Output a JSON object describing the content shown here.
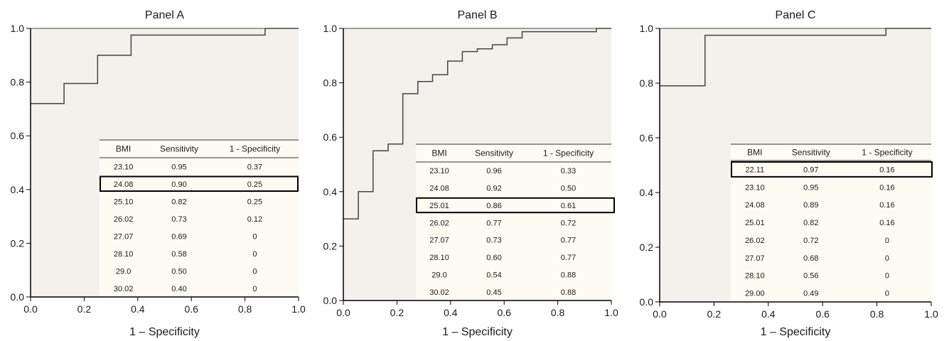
{
  "chart_data": [
    {
      "type": "line",
      "title": "Panel A",
      "xlabel": "1 – Specificity",
      "ylabel": "",
      "xlim": [
        0,
        1
      ],
      "ylim": [
        0,
        1
      ],
      "x_ticks": [
        "0.0",
        "0.2",
        "0.4",
        "0.6",
        "0.8",
        "1.0"
      ],
      "y_ticks": [
        "0.0",
        "0.2",
        "0.4",
        "0.6",
        "0.8",
        "1.0"
      ],
      "step_curve": [
        [
          0,
          0.72
        ],
        [
          0.125,
          0.72
        ],
        [
          0.125,
          0.795
        ],
        [
          0.25,
          0.795
        ],
        [
          0.25,
          0.9
        ],
        [
          0.375,
          0.9
        ],
        [
          0.375,
          0.975
        ],
        [
          0.875,
          0.975
        ],
        [
          0.875,
          1.0
        ],
        [
          1.0,
          1.0
        ]
      ],
      "table": {
        "columns": [
          "BMI",
          "Sensitivity",
          "1 - Specificity"
        ],
        "rows": [
          [
            "23.10",
            "0.95",
            "0.37"
          ],
          [
            "24.08",
            "0.90",
            "0.25"
          ],
          [
            "25.10",
            "0.82",
            "0.25"
          ],
          [
            "26.02",
            "0.73",
            "0.12"
          ],
          [
            "27.07",
            "0.69",
            "0"
          ],
          [
            "28.10",
            "0.58",
            "0"
          ],
          [
            "29.0",
            "0.50",
            "0"
          ],
          [
            "30.02",
            "0.40",
            "0"
          ]
        ],
        "highlight_row": 1
      }
    },
    {
      "type": "line",
      "title": "Panel B",
      "xlabel": "1 – Specificity",
      "ylabel": "",
      "xlim": [
        0,
        1
      ],
      "ylim": [
        0,
        1
      ],
      "x_ticks": [
        "0.0",
        "0.2",
        "0.4",
        "0.6",
        "0.8",
        "1.0"
      ],
      "y_ticks": [
        "0.0",
        "0.2",
        "0.4",
        "0.6",
        "0.8",
        "1.0"
      ],
      "step_curve": [
        [
          0,
          0.3
        ],
        [
          0.056,
          0.3
        ],
        [
          0.056,
          0.4
        ],
        [
          0.111,
          0.4
        ],
        [
          0.111,
          0.55
        ],
        [
          0.167,
          0.55
        ],
        [
          0.167,
          0.575
        ],
        [
          0.222,
          0.575
        ],
        [
          0.222,
          0.76
        ],
        [
          0.278,
          0.76
        ],
        [
          0.278,
          0.805
        ],
        [
          0.333,
          0.805
        ],
        [
          0.333,
          0.83
        ],
        [
          0.389,
          0.83
        ],
        [
          0.389,
          0.88
        ],
        [
          0.444,
          0.88
        ],
        [
          0.444,
          0.915
        ],
        [
          0.5,
          0.915
        ],
        [
          0.5,
          0.925
        ],
        [
          0.556,
          0.925
        ],
        [
          0.556,
          0.94
        ],
        [
          0.611,
          0.94
        ],
        [
          0.611,
          0.965
        ],
        [
          0.667,
          0.965
        ],
        [
          0.667,
          0.988
        ],
        [
          0.944,
          0.988
        ],
        [
          0.944,
          1.0
        ],
        [
          1.0,
          1.0
        ]
      ],
      "table": {
        "columns": [
          "BMI",
          "Sensitivity",
          "1 - Specificity"
        ],
        "rows": [
          [
            "23.10",
            "0.96",
            "0.33"
          ],
          [
            "24.08",
            "0.92",
            "0.50"
          ],
          [
            "25.01",
            "0.86",
            "0.61"
          ],
          [
            "26.02",
            "0.77",
            "0.72"
          ],
          [
            "27.07",
            "0.73",
            "0.77"
          ],
          [
            "28.10",
            "0.60",
            "0.77"
          ],
          [
            "29.0",
            "0.54",
            "0.88"
          ],
          [
            "30.02",
            "0.45",
            "0.88"
          ]
        ],
        "highlight_row": 2
      }
    },
    {
      "type": "line",
      "title": "Panel C",
      "xlabel": "1 – Specificity",
      "ylabel": "",
      "xlim": [
        0,
        1
      ],
      "ylim": [
        0,
        1
      ],
      "x_ticks": [
        "0.0",
        "0.2",
        "0.4",
        "0.6",
        "0.8",
        "1.0"
      ],
      "y_ticks": [
        "0.0",
        "0.2",
        "0.4",
        "0.6",
        "0.8",
        "1.0"
      ],
      "step_curve": [
        [
          0,
          0.79
        ],
        [
          0.167,
          0.79
        ],
        [
          0.167,
          0.975
        ],
        [
          0.833,
          0.975
        ],
        [
          0.833,
          1.0
        ],
        [
          1.0,
          1.0
        ]
      ],
      "table": {
        "columns": [
          "BMI",
          "Sensitivity",
          "1 - Specificity"
        ],
        "rows": [
          [
            "22.11",
            "0.97",
            "0.16"
          ],
          [
            "23.10",
            "0.95",
            "0.16"
          ],
          [
            "24.08",
            "0.89",
            "0.16"
          ],
          [
            "25.01",
            "0.82",
            "0.16"
          ],
          [
            "26.02",
            "0.72",
            "0"
          ],
          [
            "27.07",
            "0.68",
            "0"
          ],
          [
            "28.10",
            "0.56",
            "0"
          ],
          [
            "29.00",
            "0.49",
            "0"
          ]
        ],
        "highlight_row": 0
      }
    }
  ],
  "colors": {
    "plot_background": "#f3f1ec",
    "table_background": "#fdfcf2",
    "line": "#444444",
    "axis": "#000000",
    "highlight_border": "#000000"
  }
}
